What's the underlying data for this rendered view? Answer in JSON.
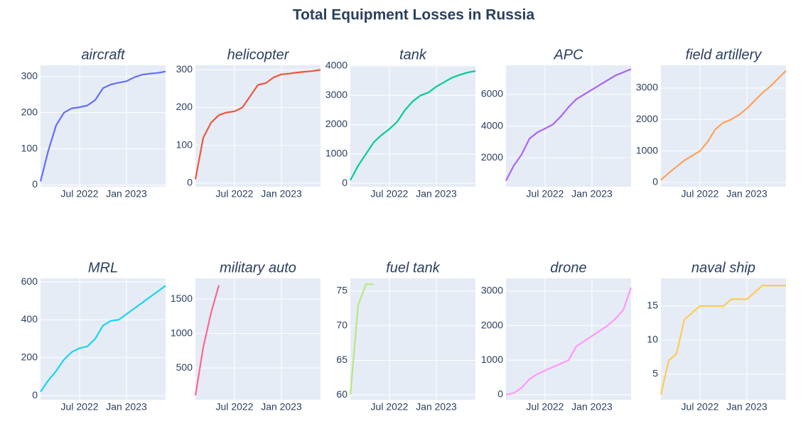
{
  "title": "Total Equipment Losses in Russia",
  "chart_data": [
    {
      "type": "line",
      "title": "aircraft",
      "color": "#636efa",
      "x": [
        "2022-02",
        "2022-03",
        "2022-04",
        "2022-05",
        "2022-06",
        "2022-07",
        "2022-08",
        "2022-09",
        "2022-10",
        "2022-11",
        "2022-12",
        "2023-01",
        "2023-02",
        "2023-03",
        "2023-04",
        "2023-05",
        "2023-06"
      ],
      "values": [
        10,
        95,
        165,
        200,
        212,
        215,
        220,
        235,
        268,
        278,
        283,
        287,
        298,
        305,
        308,
        310,
        314
      ],
      "xlim": [
        "2022-02",
        "2023-06"
      ],
      "xticks": [
        {
          "value": "2022-07",
          "label": "Jul 2022"
        },
        {
          "value": "2023-01",
          "label": "Jan 2023"
        }
      ],
      "ylim": [
        -5,
        331
      ],
      "yticks": [
        0,
        100,
        200,
        300
      ],
      "grid": true
    },
    {
      "type": "line",
      "title": "helicopter",
      "color": "#EF553B",
      "x": [
        "2022-02",
        "2022-03",
        "2022-04",
        "2022-05",
        "2022-06",
        "2022-07",
        "2022-08",
        "2022-09",
        "2022-10",
        "2022-11",
        "2022-12",
        "2023-01",
        "2023-02",
        "2023-03",
        "2023-04",
        "2023-05",
        "2023-06"
      ],
      "values": [
        10,
        120,
        160,
        180,
        187,
        190,
        200,
        230,
        260,
        265,
        280,
        288,
        290,
        293,
        295,
        297,
        300
      ],
      "xlim": [
        "2022-02",
        "2023-06"
      ],
      "xticks": [
        {
          "value": "2022-07",
          "label": "Jul 2022"
        },
        {
          "value": "2023-01",
          "label": "Jan 2023"
        }
      ],
      "ylim": [
        -10,
        312
      ],
      "yticks": [
        0,
        100,
        200,
        300
      ],
      "grid": true
    },
    {
      "type": "line",
      "title": "tank",
      "color": "#00cc96",
      "x": [
        "2022-02",
        "2022-03",
        "2022-04",
        "2022-05",
        "2022-06",
        "2022-07",
        "2022-08",
        "2022-09",
        "2022-10",
        "2022-11",
        "2022-12",
        "2023-01",
        "2023-02",
        "2023-03",
        "2023-04",
        "2023-05",
        "2023-06"
      ],
      "values": [
        100,
        600,
        1000,
        1400,
        1650,
        1850,
        2100,
        2500,
        2800,
        3000,
        3100,
        3300,
        3450,
        3600,
        3700,
        3780,
        3830
      ],
      "xlim": [
        "2022-02",
        "2023-06"
      ],
      "xticks": [
        {
          "value": "2022-07",
          "label": "Jul 2022"
        },
        {
          "value": "2023-01",
          "label": "Jan 2023"
        }
      ],
      "ylim": [
        -120,
        4025
      ],
      "yticks": [
        0,
        1000,
        2000,
        3000,
        4000
      ],
      "grid": true
    },
    {
      "type": "line",
      "title": "APC",
      "color": "#ab63fa",
      "x": [
        "2022-02",
        "2022-03",
        "2022-04",
        "2022-05",
        "2022-06",
        "2022-07",
        "2022-08",
        "2022-09",
        "2022-10",
        "2022-11",
        "2022-12",
        "2023-01",
        "2023-02",
        "2023-03",
        "2023-04",
        "2023-05",
        "2023-06"
      ],
      "values": [
        550,
        1500,
        2200,
        3200,
        3600,
        3850,
        4100,
        4600,
        5200,
        5700,
        6000,
        6300,
        6600,
        6900,
        7200,
        7400,
        7600
      ],
      "xlim": [
        "2022-02",
        "2023-06"
      ],
      "xticks": [
        {
          "value": "2022-07",
          "label": "Jul 2022"
        },
        {
          "value": "2023-01",
          "label": "Jan 2023"
        }
      ],
      "ylim": [
        170,
        7840
      ],
      "yticks": [
        2000,
        4000,
        6000
      ],
      "grid": true
    },
    {
      "type": "line",
      "title": "field artillery",
      "color": "#FFA15A",
      "x": [
        "2022-02",
        "2022-03",
        "2022-04",
        "2022-05",
        "2022-06",
        "2022-07",
        "2022-08",
        "2022-09",
        "2022-10",
        "2022-11",
        "2022-12",
        "2023-01",
        "2023-02",
        "2023-03",
        "2023-04",
        "2023-05",
        "2023-06"
      ],
      "values": [
        80,
        300,
        500,
        700,
        850,
        1000,
        1300,
        1700,
        1900,
        2000,
        2150,
        2350,
        2600,
        2850,
        3050,
        3300,
        3550
      ],
      "xlim": [
        "2022-02",
        "2023-06"
      ],
      "xticks": [
        {
          "value": "2022-07",
          "label": "Jul 2022"
        },
        {
          "value": "2023-01",
          "label": "Jan 2023"
        }
      ],
      "ylim": [
        -135,
        3720
      ],
      "yticks": [
        0,
        1000,
        2000,
        3000
      ],
      "grid": true
    },
    {
      "type": "line",
      "title": "MRL",
      "color": "#19d3f3",
      "x": [
        "2022-02",
        "2022-03",
        "2022-04",
        "2022-05",
        "2022-06",
        "2022-07",
        "2022-08",
        "2022-09",
        "2022-10",
        "2022-11",
        "2022-12",
        "2023-01",
        "2023-02",
        "2023-03",
        "2023-04",
        "2023-05",
        "2023-06"
      ],
      "values": [
        20,
        80,
        130,
        190,
        230,
        250,
        260,
        300,
        370,
        395,
        400,
        430,
        460,
        490,
        520,
        550,
        580
      ],
      "xlim": [
        "2022-02",
        "2023-06"
      ],
      "xticks": [
        {
          "value": "2022-07",
          "label": "Jul 2022"
        },
        {
          "value": "2023-01",
          "label": "Jan 2023"
        }
      ],
      "ylim": [
        -22,
        619
      ],
      "yticks": [
        0,
        200,
        400,
        600
      ],
      "grid": true
    },
    {
      "type": "line",
      "title": "military auto",
      "color": "#FF6692",
      "x": [
        "2022-02",
        "2022-03",
        "2022-04",
        "2022-05"
      ],
      "values": [
        100,
        800,
        1300,
        1700
      ],
      "xlim": [
        "2022-02",
        "2023-06"
      ],
      "xticks": [
        {
          "value": "2022-07",
          "label": "Jul 2022"
        },
        {
          "value": "2023-01",
          "label": "Jan 2023"
        }
      ],
      "ylim": [
        37,
        1800
      ],
      "yticks": [
        500,
        1000,
        1500
      ],
      "grid": true
    },
    {
      "type": "line",
      "title": "fuel tank",
      "color": "#B6E880",
      "x": [
        "2022-02",
        "2022-03",
        "2022-04",
        "2022-05"
      ],
      "values": [
        60,
        73,
        76,
        76
      ],
      "xlim": [
        "2022-02",
        "2023-06"
      ],
      "xticks": [
        {
          "value": "2022-07",
          "label": "Jul 2022"
        },
        {
          "value": "2023-01",
          "label": "Jan 2023"
        }
      ],
      "ylim": [
        59.3,
        76.85
      ],
      "yticks": [
        60,
        65,
        70,
        75
      ],
      "grid": true
    },
    {
      "type": "line",
      "title": "drone",
      "color": "#FF97FF",
      "x": [
        "2022-02",
        "2022-03",
        "2022-04",
        "2022-05",
        "2022-06",
        "2022-07",
        "2022-08",
        "2022-09",
        "2022-10",
        "2022-11",
        "2022-12",
        "2023-01",
        "2023-02",
        "2023-03",
        "2023-04",
        "2023-05",
        "2023-06"
      ],
      "values": [
        0,
        50,
        200,
        450,
        600,
        700,
        800,
        900,
        1000,
        1400,
        1550,
        1700,
        1850,
        2000,
        2200,
        2450,
        3100
      ],
      "xlim": [
        "2022-02",
        "2023-06"
      ],
      "xticks": [
        {
          "value": "2022-07",
          "label": "Jul 2022"
        },
        {
          "value": "2023-01",
          "label": "Jan 2023"
        }
      ],
      "ylim": [
        -145,
        3370
      ],
      "yticks": [
        0,
        1000,
        2000,
        3000
      ],
      "grid": true
    },
    {
      "type": "line",
      "title": "naval ship",
      "color": "#FECB52",
      "x": [
        "2022-02",
        "2022-03",
        "2022-04",
        "2022-05",
        "2022-06",
        "2022-07",
        "2022-08",
        "2022-09",
        "2022-10",
        "2022-11",
        "2022-12",
        "2023-01",
        "2023-02",
        "2023-03",
        "2023-04",
        "2023-05",
        "2023-06"
      ],
      "values": [
        2,
        7,
        8,
        13,
        14,
        15,
        15,
        15,
        15,
        16,
        16,
        16,
        17,
        18,
        18,
        18,
        18
      ],
      "xlim": [
        "2022-02",
        "2023-06"
      ],
      "xticks": [
        {
          "value": "2022-07",
          "label": "Jul 2022"
        },
        {
          "value": "2023-01",
          "label": "Jan 2023"
        }
      ],
      "ylim": [
        1.25,
        19.06
      ],
      "yticks": [
        5,
        10,
        15
      ],
      "grid": true
    }
  ]
}
